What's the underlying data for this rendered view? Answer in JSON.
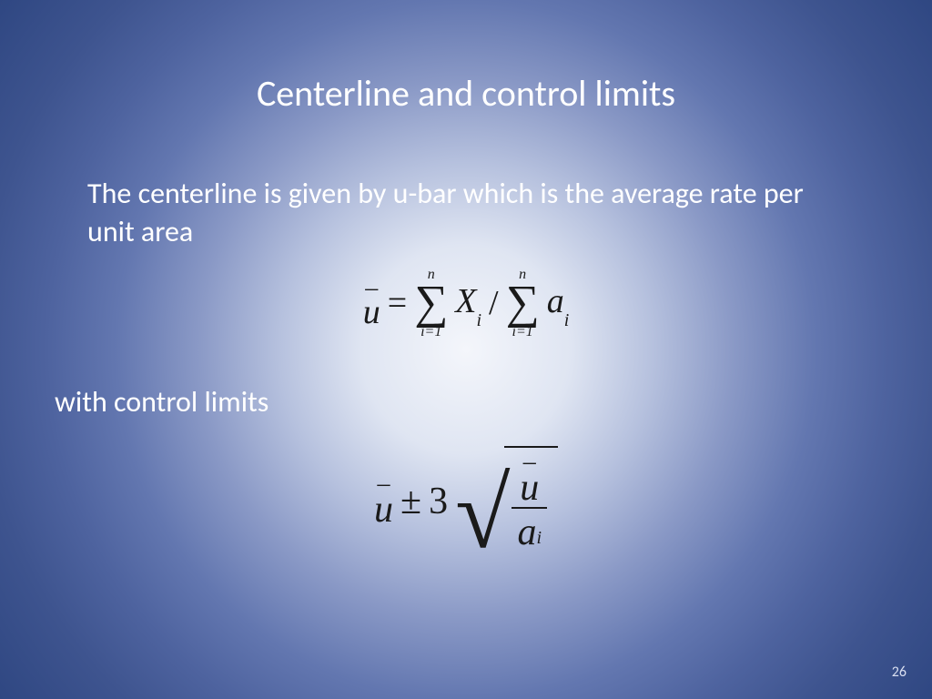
{
  "slide": {
    "title": "Centerline and control limits",
    "body_line1": "The centerline is given by u-bar which is the average rate per unit area",
    "body_line2": "with control limits",
    "page_number": "26",
    "background_gradient": {
      "type": "radial",
      "center_color": "#f4f6fb",
      "edge_color": "#2f4782"
    },
    "text_color": "#ffffff",
    "formula_color": "#1a1a1a",
    "title_fontsize": 40,
    "body_fontsize": 32,
    "formula_fontsize": 38
  },
  "formula1": {
    "lhs_var": "u",
    "lhs_bar": "–",
    "equals": "=",
    "sum1_top": "n",
    "sum1_symbol": "∑",
    "sum1_bottom": "i=1",
    "sum1_term_base": "X",
    "sum1_term_sub": "i",
    "divide": "/",
    "sum2_top": "n",
    "sum2_symbol": "∑",
    "sum2_bottom": "i=1",
    "sum2_term_base": "a",
    "sum2_term_sub": "i"
  },
  "formula2": {
    "lhs_var": "u",
    "lhs_bar": "–",
    "plusminus": "±",
    "coef": "3",
    "num_var": "u",
    "num_bar": "–",
    "den_base": "a",
    "den_sub": "i"
  }
}
